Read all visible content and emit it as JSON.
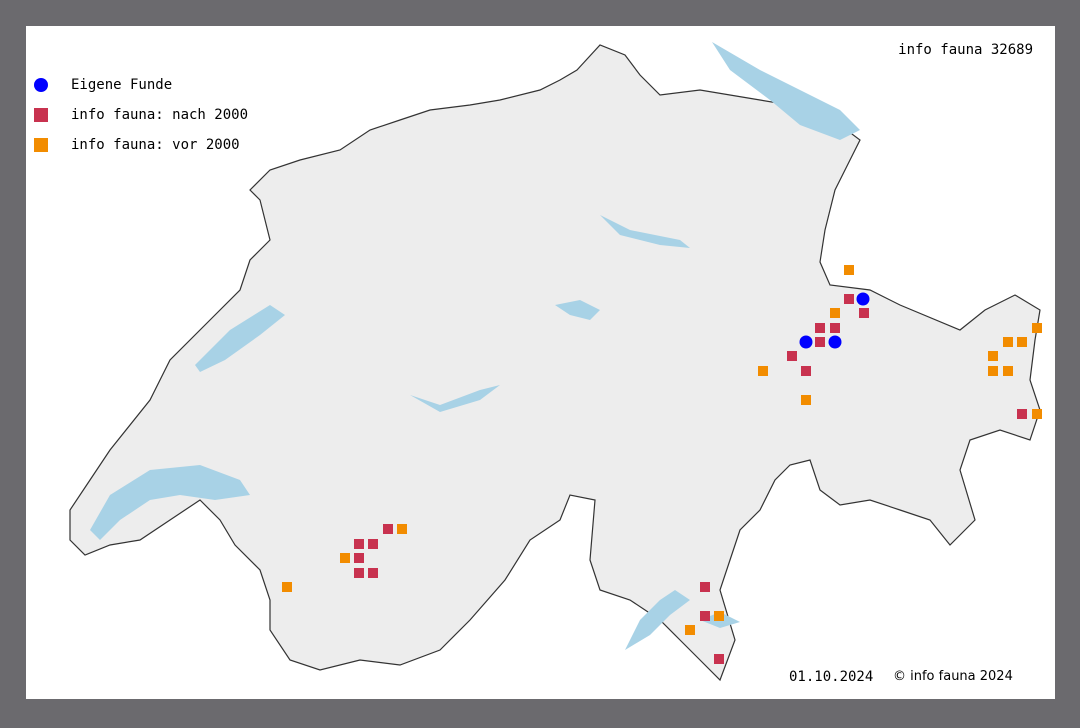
{
  "title": "info fauna 32689",
  "legend": [
    {
      "label": "Eigene Funde",
      "shape": "circle",
      "color": "#0000ff"
    },
    {
      "label": "info fauna: nach 2000",
      "shape": "square",
      "color": "#c8324f"
    },
    {
      "label": "info fauna: vor 2000",
      "shape": "square",
      "color": "#f28c00"
    }
  ],
  "date": "01.10.2024",
  "copyright": "© info fauna 2024",
  "colors": {
    "land": "#eeeeee",
    "lake": "#a8d2e6",
    "border": "#333333",
    "frame": "#6b6a6e"
  }
}
